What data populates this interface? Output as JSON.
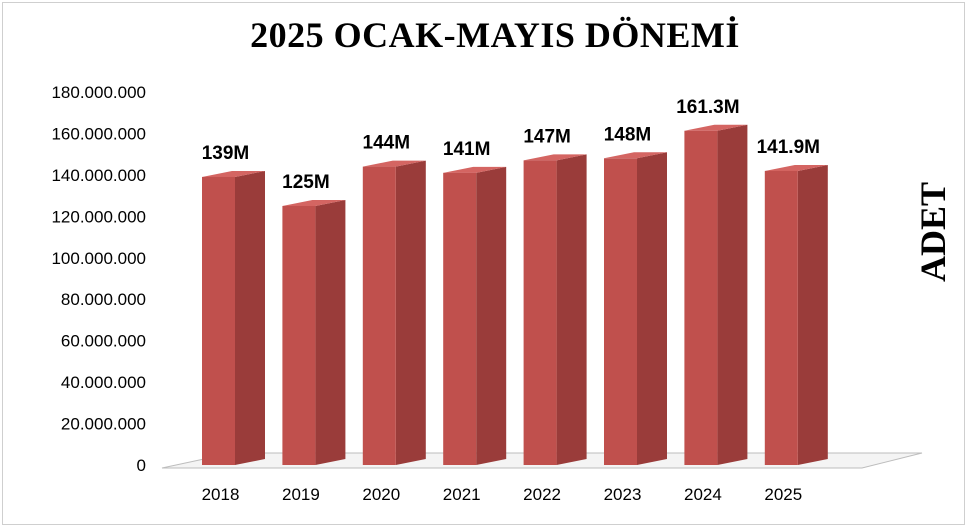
{
  "chart_data": {
    "type": "bar",
    "title": "2025 OCAK-MAYIS DÖNEMİ",
    "ylabel": "ADET",
    "xlabel": "",
    "categories": [
      "2018",
      "2019",
      "2020",
      "2021",
      "2022",
      "2023",
      "2024",
      "2025"
    ],
    "values": [
      139000000,
      125000000,
      144000000,
      141000000,
      147000000,
      148000000,
      161300000,
      141900000
    ],
    "data_labels": [
      "139M",
      "125M",
      "144M",
      "141M",
      "147M",
      "148M",
      "161.3M",
      "141.9M"
    ],
    "y_ticks": [
      0,
      20000000,
      40000000,
      60000000,
      80000000,
      100000000,
      120000000,
      140000000,
      160000000,
      180000000
    ],
    "y_tick_labels": [
      "0",
      "20.000.000",
      "40.000.000",
      "60.000.000",
      "80.000.000",
      "100.000.000",
      "120.000.000",
      "140.000.000",
      "160.000.000",
      "180.000.000"
    ],
    "ylim": [
      0,
      180000000
    ],
    "grid": false,
    "legend": "none",
    "style": "3d-column",
    "colors": {
      "bar_front": "#c0504d",
      "bar_side": "#9a3c3a",
      "bar_top": "#d46562"
    }
  }
}
